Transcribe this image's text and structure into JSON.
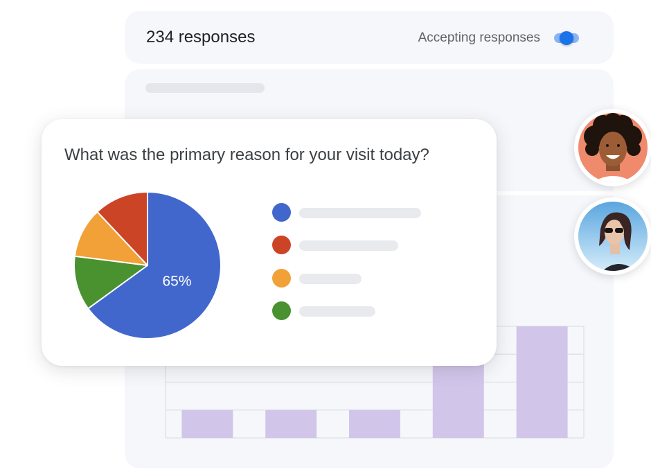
{
  "header": {
    "responses_label": "234 responses",
    "accepting_label": "Accepting responses",
    "accepting_on": true
  },
  "question": {
    "title": "What was the primary reason for your visit today?"
  },
  "colors": {
    "blue": "#4267cc",
    "red": "#cc4426",
    "orange": "#f1a138",
    "green": "#4a9130",
    "bar": "#d2c5ea",
    "accent": "#1a73e8"
  },
  "chart_data": [
    {
      "type": "pie",
      "title": "",
      "slices": [
        {
          "value": 65,
          "color": "#4267cc"
        },
        {
          "value": 12,
          "color": "#4a9130"
        },
        {
          "value": 11,
          "color": "#f1a138"
        },
        {
          "value": 12,
          "color": "#cc4426"
        }
      ],
      "data_labels": [
        {
          "slice": 0,
          "text": "65%"
        }
      ],
      "legend_colors": [
        "#4267cc",
        "#cc4426",
        "#f1a138",
        "#4a9130"
      ],
      "legend_placement": "right"
    },
    {
      "type": "bar",
      "title": "",
      "categories": [
        "",
        "",
        "",
        "",
        ""
      ],
      "values": [
        1,
        1,
        1,
        4,
        4
      ],
      "ylim": [
        0,
        4
      ],
      "grid": true,
      "xlabel": "",
      "ylabel": "",
      "color": "#d2c5ea"
    }
  ]
}
